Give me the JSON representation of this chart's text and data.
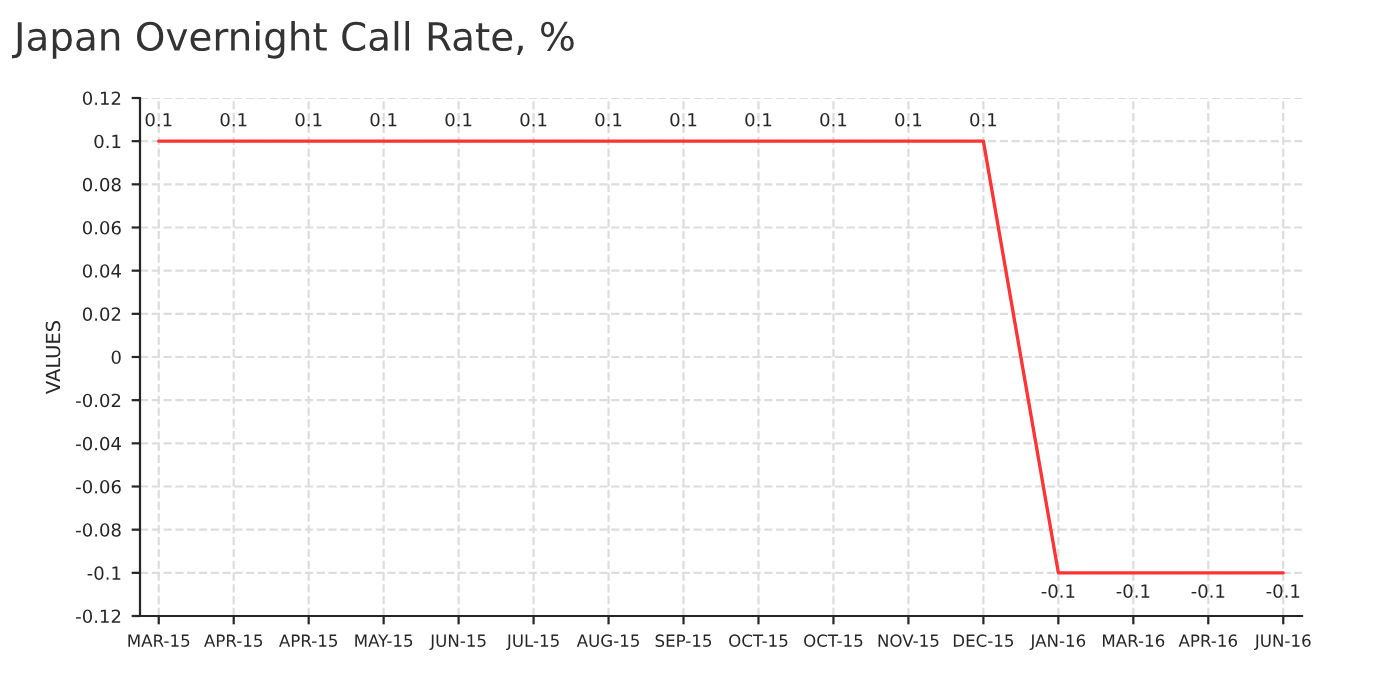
{
  "chart_data": {
    "type": "line",
    "title": "Japan Overnight Call Rate, %",
    "ylabel": "VALUES",
    "categories": [
      "MAR-15",
      "APR-15",
      "APR-15",
      "MAY-15",
      "JUN-15",
      "JUL-15",
      "AUG-15",
      "SEP-15",
      "OCT-15",
      "OCT-15",
      "NOV-15",
      "DEC-15",
      "JAN-16",
      "MAR-16",
      "APR-16",
      "JUN-16"
    ],
    "series": [
      {
        "color": "#ff3333",
        "values": [
          0.1,
          0.1,
          0.1,
          0.1,
          0.1,
          0.1,
          0.1,
          0.1,
          0.1,
          0.1,
          0.1,
          0.1,
          -0.1,
          -0.1,
          -0.1,
          -0.1
        ]
      }
    ],
    "ylim": [
      -0.12,
      0.12
    ],
    "yticks": [
      -0.12,
      -0.1,
      -0.08,
      -0.06,
      -0.04,
      -0.02,
      0,
      0.02,
      0.04,
      0.06,
      0.08,
      0.1,
      0.12
    ],
    "grid": true,
    "data_labels": true,
    "line_style": "solid",
    "marker": "none"
  }
}
